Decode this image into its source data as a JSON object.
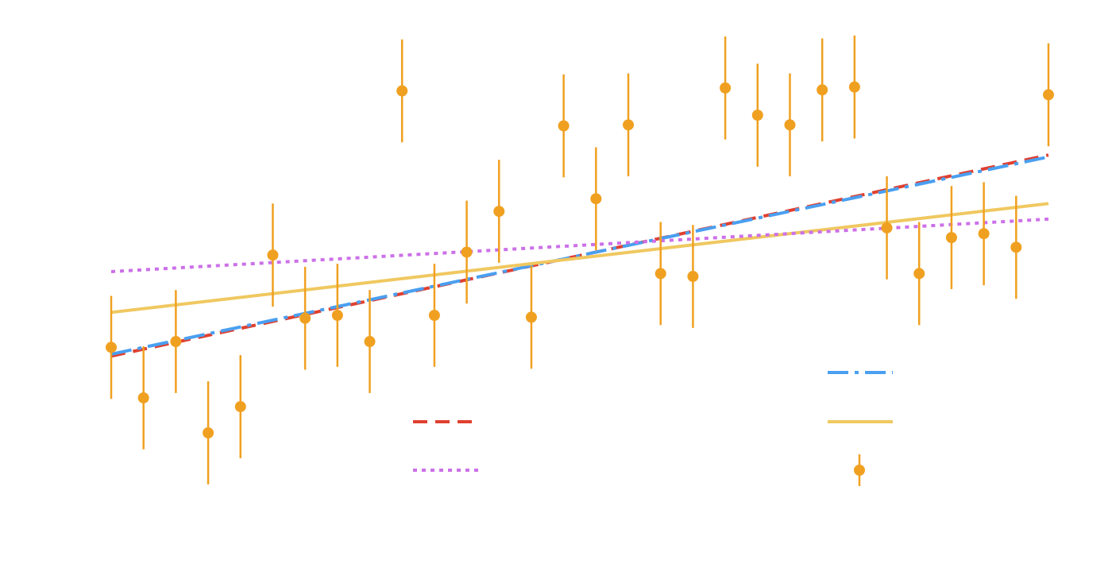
{
  "chart_data": {
    "type": "scatter",
    "title": "",
    "xlabel": "",
    "ylabel": "",
    "xlim": [
      0,
      29
    ],
    "ylim": [
      -1.6,
      3.55
    ],
    "grid": false,
    "legend_location": "lower-center",
    "points": {
      "x": [
        0,
        1,
        2,
        3,
        4,
        5,
        6,
        7,
        8,
        9,
        10,
        11,
        12,
        13,
        14,
        15,
        16,
        17,
        18,
        19,
        20,
        21,
        22,
        23,
        24,
        25,
        26,
        27,
        28,
        29
      ],
      "y": [
        0.22,
        -0.3,
        0.28,
        -0.66,
        -0.39,
        1.17,
        0.52,
        0.55,
        0.28,
        2.86,
        0.55,
        1.2,
        1.62,
        0.53,
        2.5,
        1.75,
        2.51,
        0.98,
        0.95,
        2.89,
        2.61,
        2.51,
        2.87,
        2.9,
        1.45,
        0.98,
        1.35,
        1.39,
        1.25,
        2.82
      ],
      "yerr": [
        0.53,
        0.53,
        0.53,
        0.53,
        0.53,
        0.53,
        0.53,
        0.53,
        0.53,
        0.53,
        0.53,
        0.53,
        0.53,
        0.53,
        0.53,
        0.53,
        0.53,
        0.53,
        0.53,
        0.53,
        0.53,
        0.53,
        0.53,
        0.53,
        0.53,
        0.53,
        0.53,
        0.53,
        0.53,
        0.53
      ],
      "color": "#f0a020"
    },
    "fits": [
      {
        "style": "dashed",
        "color": "#e04030",
        "x": [
          0,
          29
        ],
        "y": [
          0.13,
          2.2
        ]
      },
      {
        "style": "dashdot",
        "color": "#4a9ff0",
        "x": [
          0,
          29
        ],
        "y": [
          0.15,
          2.18
        ]
      },
      {
        "style": "solid",
        "color": "#f0c860",
        "x": [
          0,
          29
        ],
        "y": [
          0.58,
          1.7
        ]
      },
      {
        "style": "dotted",
        "color": "#cc70e8",
        "x": [
          0,
          29
        ],
        "y": [
          1.0,
          1.54
        ]
      }
    ]
  }
}
